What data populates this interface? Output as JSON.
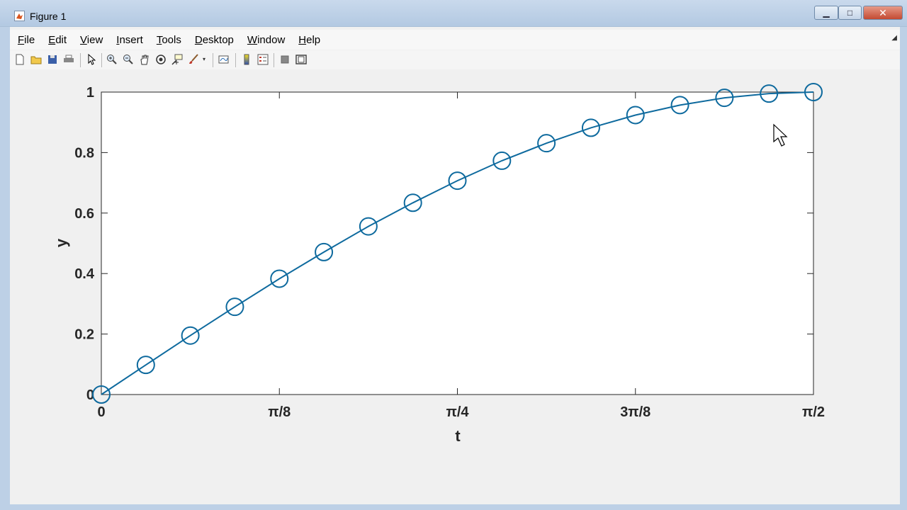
{
  "window": {
    "title": "Figure 1",
    "minimize_glyph": "▁",
    "maximize_glyph": "□",
    "close_glyph": "✕"
  },
  "menu": [
    "File",
    "Edit",
    "View",
    "Insert",
    "Tools",
    "Desktop",
    "Window",
    "Help"
  ],
  "toolbar": {
    "icons": [
      "new-figure-icon",
      "open-file-icon",
      "save-figure-icon",
      "print-figure-icon",
      "edit-plot-icon",
      "zoom-in-icon",
      "zoom-out-icon",
      "pan-icon",
      "rotate-3d-icon",
      "data-cursor-icon",
      "brush-icon",
      "link-plot-icon",
      "insert-colorbar-icon",
      "insert-legend-icon",
      "hide-plot-tools-icon",
      "show-plot-tools-icon"
    ]
  },
  "colors": {
    "line": "#0e6a9e",
    "axes_background": "#ffffff",
    "figure_background": "#f0f0f0"
  },
  "chart_data": {
    "type": "line",
    "marker": "circle",
    "title": "",
    "xlabel": "t",
    "ylabel": "y",
    "xlim": [
      0,
      1.5707963
    ],
    "ylim": [
      0,
      1
    ],
    "x_ticks": [
      0,
      0.3926991,
      0.7853982,
      1.1780972,
      1.5707963
    ],
    "x_tick_labels": [
      "0",
      "π/8",
      "π/4",
      "3π/8",
      "π/2"
    ],
    "y_ticks": [
      0,
      0.2,
      0.4,
      0.6,
      0.8,
      1
    ],
    "y_tick_labels": [
      "0",
      "0.2",
      "0.4",
      "0.6",
      "0.8",
      "1"
    ],
    "grid": false,
    "series": [
      {
        "x": [
          0,
          0.0981748,
          0.1963495,
          0.2945243,
          0.3926991,
          0.4908739,
          0.5890486,
          0.6872234,
          0.7853982,
          0.8835729,
          0.9817477,
          1.0799225,
          1.1780972,
          1.276272,
          1.3744468,
          1.4726216,
          1.5707963
        ],
        "values": [
          0,
          0.098,
          0.195,
          0.29,
          0.383,
          0.471,
          0.556,
          0.634,
          0.707,
          0.773,
          0.831,
          0.882,
          0.924,
          0.957,
          0.981,
          0.995,
          1.0
        ]
      }
    ]
  }
}
